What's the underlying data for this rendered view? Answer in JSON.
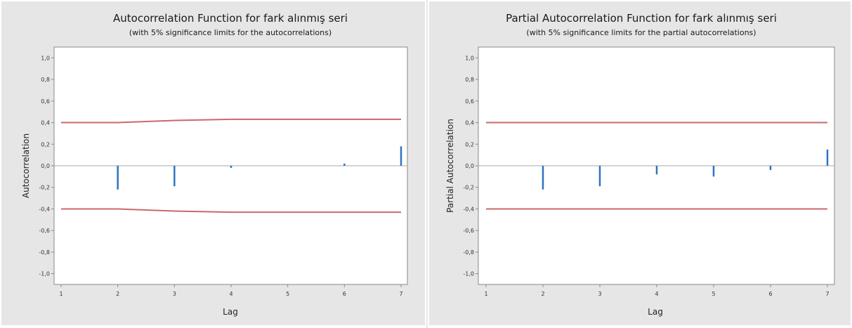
{
  "colors": {
    "panel_bg": "#e6e6e6",
    "plot_bg": "#ffffff",
    "bar": "#2f73c0",
    "limit": "#c8696a",
    "axis": "#888888"
  },
  "chart_data": [
    {
      "type": "bar",
      "title": "Autocorrelation Function for fark alınmış seri",
      "subtitle": "(with 5% significance limits for the autocorrelations)",
      "xlabel": "Lag",
      "ylabel": "Autocorrelation",
      "x": [
        1,
        2,
        3,
        4,
        5,
        6,
        7
      ],
      "x_tick_labels": [
        "1",
        "2",
        "3",
        "4",
        "5",
        "6",
        "7"
      ],
      "values": [
        0.0,
        -0.22,
        -0.19,
        -0.02,
        0.0,
        0.02,
        0.18
      ],
      "ylim": [
        -1.1,
        1.1
      ],
      "yticks": [
        1.0,
        0.8,
        0.6,
        0.4,
        0.2,
        0.0,
        -0.2,
        -0.4,
        -0.6,
        -0.8,
        -1.0
      ],
      "y_tick_labels": [
        "1,0",
        "0,8",
        "0,6",
        "0,4",
        "0,2",
        "0,0",
        "-0,2",
        "-0,4",
        "-0,6",
        "-0,8",
        "-1,0"
      ],
      "upper_limit": [
        0.4,
        0.4,
        0.42,
        0.43,
        0.43,
        0.43,
        0.43
      ],
      "lower_limit": [
        -0.4,
        -0.4,
        -0.42,
        -0.43,
        -0.43,
        -0.43,
        -0.43
      ]
    },
    {
      "type": "bar",
      "title": "Partial Autocorrelation Function for fark alınmış seri",
      "subtitle": "(with 5% significance limits for the partial autocorrelations)",
      "xlabel": "Lag",
      "ylabel": "Partial Autocorrelation",
      "x": [
        1,
        2,
        3,
        4,
        5,
        6,
        7
      ],
      "x_tick_labels": [
        "1",
        "2",
        "3",
        "4",
        "5",
        "6",
        "7"
      ],
      "values": [
        0.0,
        -0.22,
        -0.19,
        -0.08,
        -0.1,
        -0.04,
        0.15
      ],
      "ylim": [
        -1.1,
        1.1
      ],
      "yticks": [
        1.0,
        0.8,
        0.6,
        0.4,
        0.2,
        0.0,
        -0.2,
        -0.4,
        -0.6,
        -0.8,
        -1.0
      ],
      "y_tick_labels": [
        "1,0",
        "0,8",
        "0,6",
        "0,4",
        "0,2",
        "0,0",
        "-0,2",
        "-0,4",
        "-0,6",
        "-0,8",
        "-1,0"
      ],
      "upper_limit": [
        0.4,
        0.4,
        0.4,
        0.4,
        0.4,
        0.4,
        0.4
      ],
      "lower_limit": [
        -0.4,
        -0.4,
        -0.4,
        -0.4,
        -0.4,
        -0.4,
        -0.4
      ]
    }
  ]
}
